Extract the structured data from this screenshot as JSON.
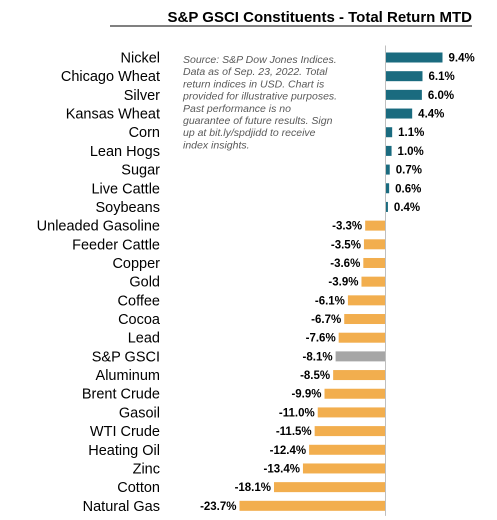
{
  "chart_data": {
    "type": "bar",
    "orientation": "horizontal",
    "title": "S&P GSCI Constituents - Total Return MTD",
    "note": [
      "Source: S&P Dow Jones Indices.",
      "Data as of Sep. 23, 2022. Total",
      "return indices in USD.  Chart is",
      "provided for illustrative purposes.",
      "Past performance is no",
      "guarantee of future results. Sign",
      "up at bit.ly/spdjidd to receive",
      "index insights."
    ],
    "categories": [
      "Nickel",
      "Chicago Wheat",
      "Silver",
      "Kansas Wheat",
      "Corn",
      "Lean Hogs",
      "Sugar",
      "Live Cattle",
      "Soybeans",
      "Unleaded Gasoline",
      "Feeder Cattle",
      "Copper",
      "Gold",
      "Coffee",
      "Cocoa",
      "Lead",
      "S&P GSCI",
      "Aluminum",
      "Brent Crude",
      "Gasoil",
      "WTI Crude",
      "Heating Oil",
      "Zinc",
      "Cotton",
      "Natural Gas"
    ],
    "values": [
      9.4,
      6.1,
      6.0,
      4.4,
      1.1,
      1.0,
      0.7,
      0.6,
      0.4,
      -3.3,
      -3.5,
      -3.6,
      -3.9,
      -6.1,
      -6.7,
      -7.6,
      -8.1,
      -8.5,
      -9.9,
      -11.0,
      -11.5,
      -12.4,
      -13.4,
      -18.1,
      -23.7
    ],
    "value_labels": [
      "9.4%",
      "6.1%",
      "6.0%",
      "4.4%",
      "1.1%",
      "1.0%",
      "0.7%",
      "0.6%",
      "0.4%",
      "-3.3%",
      "-3.5%",
      "-3.6%",
      "-3.9%",
      "-6.1%",
      "-6.7%",
      "-7.6%",
      "-8.1%",
      "-8.5%",
      "-9.9%",
      "-11.0%",
      "-11.5%",
      "-12.4%",
      "-13.4%",
      "-18.1%",
      "-23.7%"
    ],
    "highlight": "S&P GSCI",
    "xlim": [
      -23.7,
      9.4
    ],
    "legend": "none",
    "grid": false,
    "colors": {
      "positive": "#1a6b7f",
      "negative": "#f2ae4e",
      "highlight": "#a6a6a6",
      "axis": "#bfbfbf",
      "title_underline": "#000000"
    }
  }
}
